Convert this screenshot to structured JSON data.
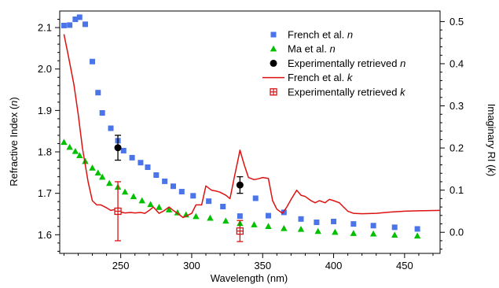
{
  "chart_data": {
    "type": "scatter",
    "xlabel": "Wavelength (nm)",
    "ylabel_left": "Refractive Index (n)",
    "ylabel_right": "Imaginary RI (k)",
    "xlim": [
      207,
      475
    ],
    "ylim_left": [
      1.555,
      2.14
    ],
    "ylim_right": [
      -0.05,
      0.525
    ],
    "x_ticks": [
      "250",
      "300",
      "350",
      "400",
      "450"
    ],
    "x_tick_values": [
      250,
      300,
      350,
      400,
      450
    ],
    "y_left_ticks": [
      "1.6",
      "1.7",
      "1.8",
      "1.9",
      "2.0",
      "2.1"
    ],
    "y_left_tick_values": [
      1.6,
      1.7,
      1.8,
      1.9,
      2.0,
      2.1
    ],
    "y_right_ticks": [
      "0.0",
      "0.1",
      "0.2",
      "0.3",
      "0.4",
      "0.5"
    ],
    "y_right_tick_values": [
      0.0,
      0.1,
      0.2,
      0.3,
      0.4,
      0.5
    ],
    "colors": {
      "french_n": "#4a74e8",
      "ma_n": "#00c000",
      "exp_n": "#000000",
      "french_k": "#dd1111",
      "exp_k": "#dd1111"
    },
    "legend": {
      "placement": "top-right",
      "entries": [
        {
          "series": "french_n",
          "label": "French et al. ",
          "italic": "n"
        },
        {
          "series": "ma_n",
          "label": "Ma et al. ",
          "italic": "n"
        },
        {
          "series": "exp_n",
          "label": "Experimentally retrieved ",
          "italic": "n"
        },
        {
          "series": "french_k",
          "label": "French et al. ",
          "italic": "k"
        },
        {
          "series": "exp_k",
          "label": "Experimentally retrieved ",
          "italic": "k"
        }
      ]
    },
    "series": [
      {
        "id": "french_n",
        "marker": "square",
        "axis": "left",
        "x": [
          210,
          214,
          218,
          221,
          225,
          230,
          234,
          237,
          243,
          248,
          252,
          258,
          264,
          269,
          275,
          281,
          287,
          293,
          301,
          312,
          322,
          334,
          345,
          354,
          365,
          377,
          388,
          400,
          414,
          428,
          443,
          459
        ],
        "y": [
          2.105,
          2.106,
          2.12,
          2.125,
          2.108,
          2.018,
          1.943,
          1.894,
          1.857,
          1.827,
          1.803,
          1.786,
          1.774,
          1.763,
          1.744,
          1.729,
          1.717,
          1.704,
          1.694,
          1.681,
          1.668,
          1.645,
          1.688,
          1.646,
          1.654,
          1.638,
          1.63,
          1.632,
          1.626,
          1.622,
          1.618,
          1.614
        ]
      },
      {
        "id": "ma_n",
        "marker": "triangle",
        "axis": "left",
        "x": [
          210,
          214,
          218,
          221,
          225,
          230,
          234,
          237,
          242,
          248,
          253,
          259,
          265,
          271,
          277,
          284,
          290,
          296,
          303,
          313,
          324,
          334,
          344,
          354,
          365,
          377,
          389,
          401,
          414,
          428,
          443,
          459
        ],
        "y": [
          1.823,
          1.811,
          1.801,
          1.791,
          1.777,
          1.761,
          1.749,
          1.739,
          1.724,
          1.715,
          1.703,
          1.692,
          1.682,
          1.673,
          1.666,
          1.66,
          1.653,
          1.648,
          1.644,
          1.64,
          1.633,
          1.627,
          1.624,
          1.62,
          1.615,
          1.613,
          1.608,
          1.606,
          1.603,
          1.602,
          1.599,
          1.597
        ]
      },
      {
        "id": "exp_n",
        "marker": "circle",
        "axis": "left",
        "x": [
          248,
          334
        ],
        "y": [
          1.81,
          1.72
        ],
        "yerr": [
          0.03,
          0.02
        ]
      },
      {
        "id": "french_k",
        "marker": "line",
        "axis": "right",
        "x": [
          210,
          213,
          217,
          220,
          223,
          227,
          230,
          233,
          236,
          240,
          243,
          247,
          250,
          253,
          257,
          260,
          264,
          267,
          270,
          273,
          277,
          280,
          284,
          287,
          290,
          294,
          297,
          300,
          303,
          307,
          310,
          314,
          317,
          320,
          324,
          327,
          330,
          334,
          337,
          340,
          344,
          347,
          350,
          354,
          357,
          360,
          364,
          367,
          370,
          374,
          377,
          380,
          384,
          387,
          390,
          394,
          397,
          400,
          404,
          407,
          410,
          414,
          420,
          430,
          440,
          450,
          460,
          475
        ],
        "y": [
          0.47,
          0.42,
          0.35,
          0.28,
          0.2,
          0.12,
          0.075,
          0.065,
          0.065,
          0.058,
          0.052,
          0.055,
          0.048,
          0.046,
          0.047,
          0.046,
          0.047,
          0.045,
          0.052,
          0.06,
          0.045,
          0.05,
          0.06,
          0.052,
          0.045,
          0.035,
          0.04,
          0.045,
          0.065,
          0.065,
          0.11,
          0.1,
          0.098,
          0.095,
          0.088,
          0.08,
          0.13,
          0.195,
          0.16,
          0.13,
          0.125,
          0.127,
          0.13,
          0.128,
          0.075,
          0.055,
          0.045,
          0.06,
          0.078,
          0.1,
          0.088,
          0.085,
          0.075,
          0.07,
          0.075,
          0.07,
          0.078,
          0.075,
          0.07,
          0.06,
          0.05,
          0.045,
          0.044,
          0.045,
          0.048,
          0.05,
          0.051,
          0.052
        ]
      },
      {
        "id": "exp_k",
        "marker": "square-cross",
        "axis": "right",
        "x": [
          248,
          334
        ],
        "y": [
          0.05,
          0.003
        ],
        "yerr": [
          0.07,
          0.025
        ]
      }
    ]
  }
}
